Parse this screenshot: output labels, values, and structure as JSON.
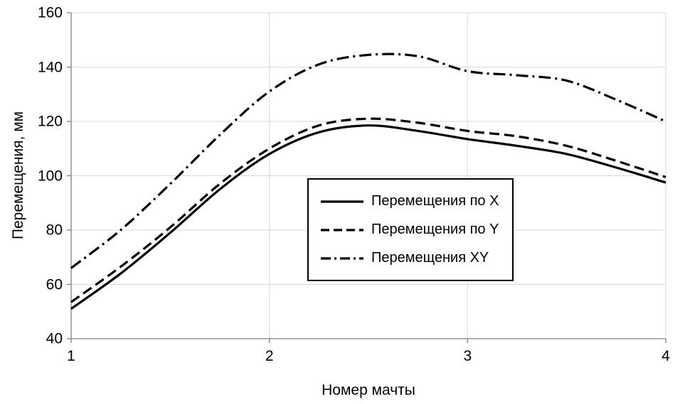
{
  "chart_data": {
    "type": "line",
    "title": "",
    "xlabel": "Номер мачты",
    "ylabel": "Перемещения, мм",
    "xlim": [
      1,
      4
    ],
    "ylim": [
      40,
      160
    ],
    "xticks": [
      1,
      2,
      3,
      4
    ],
    "yticks": [
      40,
      60,
      80,
      100,
      120,
      140,
      160
    ],
    "grid": true,
    "legend_position": "inside-center",
    "x": [
      1,
      1.25,
      1.5,
      1.75,
      2,
      2.25,
      2.5,
      2.75,
      3,
      3.25,
      3.5,
      3.75,
      4
    ],
    "series": [
      {
        "name": "Перемещения по X",
        "style": "solid",
        "color": "#000000",
        "values": [
          51,
          64,
          79,
          95,
          108,
          116,
          118.5,
          116.5,
          113.5,
          111,
          108,
          103,
          97.5
        ]
      },
      {
        "name": "Перемещения по Y",
        "style": "dashed",
        "color": "#000000",
        "values": [
          53.5,
          66.5,
          81,
          97,
          110,
          118.5,
          121,
          119.5,
          116.5,
          114.5,
          111,
          105.5,
          99.5
        ]
      },
      {
        "name": "Перемещения XY",
        "style": "dashdot",
        "color": "#000000",
        "values": [
          66,
          80,
          97,
          115,
          131,
          141,
          144.5,
          144,
          138.5,
          137,
          135,
          128,
          120
        ]
      }
    ]
  },
  "colors": {
    "grid": "#d9d9d9",
    "axis": "#7f7f7f",
    "text": "#000000",
    "background": "#ffffff"
  }
}
